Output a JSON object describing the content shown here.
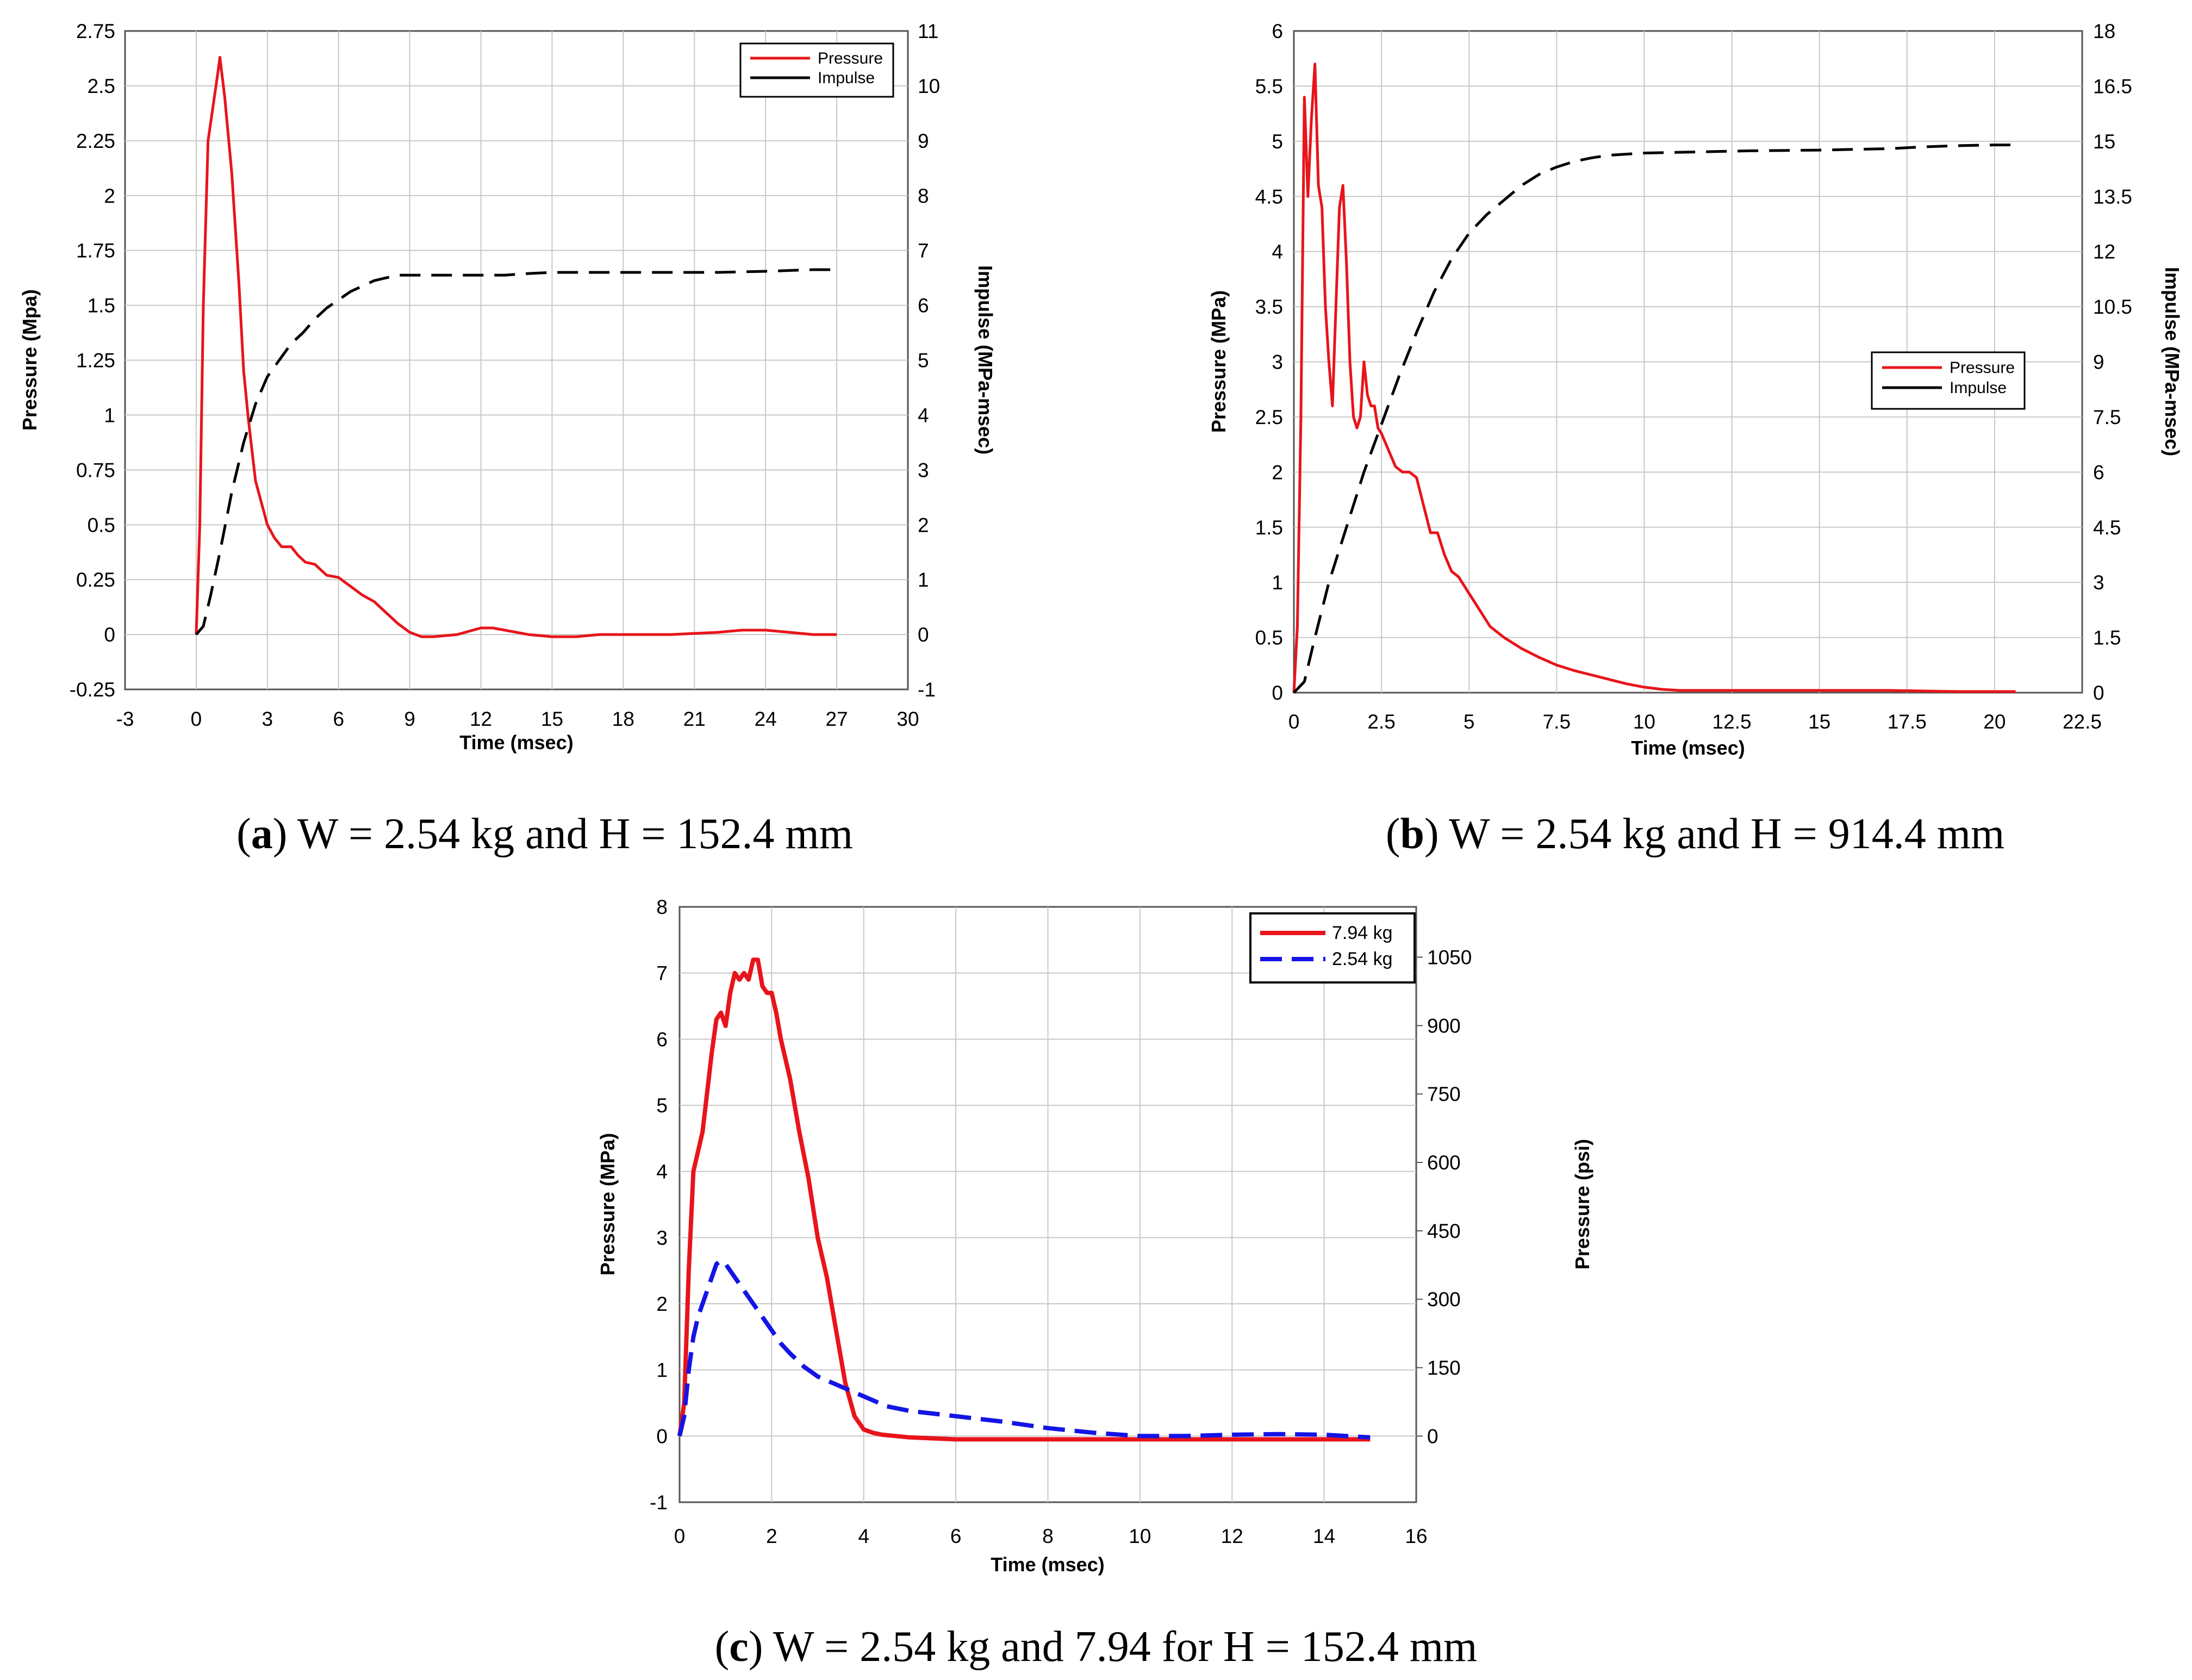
{
  "colors": {
    "pressure": "#e8141b",
    "impulse": "#000000",
    "blue": "#1414e6",
    "grid": "#c8c8c8"
  },
  "chart_data": [
    {
      "type": "line",
      "panel": "a",
      "caption": {
        "letter": "a",
        "text": "W = 2.54 kg and H = 152.4 mm"
      },
      "xlabel": "Time (msec)",
      "ylabel": "Pressure (Mpa)",
      "y2label": "Impulse (MPa-msec)",
      "xlim": [
        -3,
        30
      ],
      "ylim": [
        -0.25,
        2.75
      ],
      "y2lim": [
        -1,
        11
      ],
      "xticks": [
        "-3",
        "0",
        "3",
        "6",
        "9",
        "12",
        "15",
        "18",
        "21",
        "24",
        "27",
        "30"
      ],
      "yticks": [
        "-0.25",
        "0",
        "0.25",
        "0.5",
        "0.75",
        "1",
        "1.25",
        "1.5",
        "1.75",
        "2",
        "2.25",
        "2.5",
        "2.75"
      ],
      "y2ticks": [
        "-1",
        "0",
        "1",
        "2",
        "3",
        "4",
        "5",
        "6",
        "7",
        "8",
        "9",
        "10",
        "11"
      ],
      "legend_position": "top-right",
      "series": [
        {
          "name": "Pressure",
          "axis": "left",
          "style": "solid",
          "color": "#e8141b",
          "x": [
            0,
            0.15,
            0.3,
            0.5,
            0.7,
            0.9,
            1.0,
            1.2,
            1.5,
            1.8,
            2.0,
            2.2,
            2.5,
            2.8,
            3.0,
            3.3,
            3.6,
            4.0,
            4.3,
            4.6,
            5.0,
            5.5,
            6.0,
            6.5,
            7.0,
            7.5,
            8.0,
            8.5,
            9.0,
            9.5,
            10.0,
            11.0,
            12.0,
            12.5,
            13.0,
            14.0,
            15.0,
            16.0,
            17.0,
            18.0,
            20.0,
            22.0,
            23.0,
            24.0,
            25.0,
            26.0,
            27.0
          ],
          "y": [
            0,
            0.5,
            1.5,
            2.25,
            2.4,
            2.55,
            2.63,
            2.45,
            2.1,
            1.6,
            1.2,
            0.98,
            0.7,
            0.58,
            0.5,
            0.44,
            0.4,
            0.4,
            0.36,
            0.33,
            0.32,
            0.27,
            0.26,
            0.22,
            0.18,
            0.15,
            0.1,
            0.05,
            0.01,
            -0.01,
            -0.01,
            0.0,
            0.03,
            0.03,
            0.02,
            0.0,
            -0.01,
            -0.01,
            0.0,
            0.0,
            0.0,
            0.01,
            0.02,
            0.02,
            0.01,
            0.0,
            0.0
          ]
        },
        {
          "name": "Impulse",
          "axis": "right",
          "style": "dashed",
          "color": "#000000",
          "x": [
            0,
            0.3,
            0.6,
            1.0,
            1.5,
            2.0,
            2.5,
            3.0,
            3.5,
            4.0,
            4.5,
            5.0,
            5.5,
            6.0,
            6.5,
            7.0,
            7.5,
            8.0,
            8.5,
            9.0,
            10.0,
            11.0,
            12.0,
            13.0,
            14.0,
            15.0,
            16.0,
            18.0,
            20.0,
            22.0,
            24.0,
            26.0,
            27.0
          ],
          "y": [
            0,
            0.15,
            0.7,
            1.5,
            2.6,
            3.5,
            4.2,
            4.7,
            5.0,
            5.3,
            5.5,
            5.75,
            5.95,
            6.1,
            6.25,
            6.35,
            6.45,
            6.5,
            6.55,
            6.55,
            6.55,
            6.55,
            6.55,
            6.55,
            6.58,
            6.6,
            6.6,
            6.6,
            6.6,
            6.6,
            6.62,
            6.65,
            6.65
          ]
        }
      ]
    },
    {
      "type": "line",
      "panel": "b",
      "caption": {
        "letter": "b",
        "text": "W = 2.54 kg and H = 914.4 mm"
      },
      "xlabel": "Time (msec)",
      "ylabel": "Pressure (MPa)",
      "y2label": "Impulse (MPa-msec)",
      "xlim": [
        0,
        22.5
      ],
      "ylim": [
        0,
        6
      ],
      "y2lim": [
        0,
        18
      ],
      "xticks": [
        "0",
        "2.5",
        "5",
        "7.5",
        "10",
        "12.5",
        "15",
        "17.5",
        "20",
        "22.5"
      ],
      "yticks": [
        "0",
        "0.5",
        "1",
        "1.5",
        "2",
        "2.5",
        "3",
        "3.5",
        "4",
        "4.5",
        "5",
        "5.5",
        "6"
      ],
      "y2ticks": [
        "0",
        "1.5",
        "3",
        "4.5",
        "6",
        "7.5",
        "9",
        "10.5",
        "12",
        "13.5",
        "15",
        "16.5",
        "18"
      ],
      "legend_position": "center-right",
      "series": [
        {
          "name": "Pressure",
          "axis": "left",
          "style": "solid",
          "color": "#e8141b",
          "x": [
            0,
            0.1,
            0.2,
            0.3,
            0.4,
            0.5,
            0.6,
            0.7,
            0.8,
            0.9,
            1.0,
            1.1,
            1.2,
            1.3,
            1.4,
            1.5,
            1.6,
            1.7,
            1.8,
            1.9,
            2.0,
            2.1,
            2.2,
            2.3,
            2.4,
            2.5,
            2.7,
            2.9,
            3.1,
            3.3,
            3.5,
            3.7,
            3.9,
            4.1,
            4.3,
            4.5,
            4.7,
            5.0,
            5.3,
            5.6,
            6.0,
            6.5,
            7.0,
            7.5,
            8.0,
            8.5,
            9.0,
            9.5,
            10.0,
            10.5,
            11.0,
            12.0,
            13.0,
            15.0,
            17.0,
            19.0,
            20.6
          ],
          "y": [
            0,
            0.6,
            2.5,
            5.4,
            4.5,
            5.2,
            5.7,
            4.6,
            4.4,
            3.5,
            3.0,
            2.6,
            3.5,
            4.4,
            4.6,
            3.9,
            3.0,
            2.5,
            2.4,
            2.5,
            3.0,
            2.7,
            2.6,
            2.6,
            2.4,
            2.35,
            2.2,
            2.05,
            2.0,
            2.0,
            1.95,
            1.7,
            1.45,
            1.45,
            1.25,
            1.1,
            1.05,
            0.9,
            0.75,
            0.6,
            0.5,
            0.4,
            0.32,
            0.25,
            0.2,
            0.16,
            0.12,
            0.08,
            0.05,
            0.03,
            0.02,
            0.02,
            0.02,
            0.02,
            0.02,
            0.01,
            0.01
          ]
        },
        {
          "name": "Impulse",
          "axis": "right",
          "style": "dashed",
          "color": "#000000",
          "x": [
            0,
            0.3,
            0.6,
            1.0,
            1.5,
            2.0,
            2.5,
            3.0,
            3.5,
            4.0,
            4.5,
            5.0,
            5.5,
            6.0,
            6.5,
            7.0,
            7.5,
            8.0,
            8.5,
            9.0,
            9.5,
            10.0,
            11.0,
            12.0,
            13.0,
            14.0,
            15.0,
            16.0,
            17.0,
            18.0,
            19.0,
            20.0,
            20.6
          ],
          "y": [
            0,
            0.3,
            1.5,
            3.0,
            4.5,
            6.0,
            7.3,
            8.6,
            9.8,
            10.9,
            11.8,
            12.5,
            13.0,
            13.4,
            13.8,
            14.1,
            14.3,
            14.45,
            14.55,
            14.62,
            14.65,
            14.68,
            14.7,
            14.72,
            14.74,
            14.75,
            14.76,
            14.78,
            14.8,
            14.85,
            14.88,
            14.9,
            14.9
          ]
        }
      ]
    },
    {
      "type": "line",
      "panel": "c",
      "caption": {
        "letter": "c",
        "text": "W = 2.54 kg and 7.94 for H = 152.4 mm"
      },
      "xlabel": "Time (msec)",
      "ylabel": "Pressure (MPa)",
      "y2label": "Pressure (psi)",
      "xlim": [
        0,
        16
      ],
      "ylim": [
        -1,
        8
      ],
      "y2ticks_values": [
        0,
        150,
        300,
        450,
        600,
        750,
        900,
        1050
      ],
      "xticks": [
        "0",
        "2",
        "4",
        "6",
        "8",
        "10",
        "12",
        "14",
        "16"
      ],
      "yticks": [
        "-1",
        "0",
        "1",
        "2",
        "3",
        "4",
        "5",
        "6",
        "7",
        "8"
      ],
      "y2ticks": [
        "0",
        "150",
        "300",
        "450",
        "600",
        "750",
        "900",
        "1050"
      ],
      "legend_position": "top-right",
      "series": [
        {
          "name": "7.94 kg",
          "axis": "left",
          "style": "solid",
          "color": "#e8141b",
          "x": [
            0,
            0.1,
            0.2,
            0.3,
            0.4,
            0.5,
            0.6,
            0.7,
            0.8,
            0.9,
            1.0,
            1.1,
            1.2,
            1.3,
            1.4,
            1.5,
            1.6,
            1.7,
            1.8,
            1.9,
            2.0,
            2.1,
            2.2,
            2.4,
            2.6,
            2.8,
            3.0,
            3.2,
            3.4,
            3.6,
            3.8,
            4.0,
            4.2,
            4.4,
            4.7,
            5.0,
            6.0,
            8.0,
            10.0,
            12.0,
            14.0,
            15.0
          ],
          "y": [
            0,
            0.5,
            2.5,
            4.0,
            4.3,
            4.6,
            5.2,
            5.8,
            6.3,
            6.4,
            6.2,
            6.7,
            7.0,
            6.9,
            7.0,
            6.9,
            7.2,
            7.2,
            6.8,
            6.7,
            6.7,
            6.4,
            6.0,
            5.4,
            4.6,
            3.9,
            3.0,
            2.4,
            1.6,
            0.8,
            0.3,
            0.1,
            0.05,
            0.02,
            0.0,
            -0.02,
            -0.05,
            -0.05,
            -0.05,
            -0.05,
            -0.05,
            -0.05
          ]
        },
        {
          "name": "2.54 kg",
          "axis": "left",
          "style": "dashed",
          "color": "#1414e6",
          "x": [
            0,
            0.1,
            0.2,
            0.3,
            0.4,
            0.5,
            0.6,
            0.7,
            0.8,
            0.9,
            1.0,
            1.1,
            1.2,
            1.4,
            1.6,
            1.8,
            2.0,
            2.2,
            2.4,
            2.7,
            3.0,
            3.5,
            4.0,
            4.5,
            5.0,
            6.0,
            7.0,
            8.0,
            9.0,
            10.0,
            11.0,
            12.0,
            13.0,
            14.0,
            15.0
          ],
          "y": [
            0,
            0.3,
            1.0,
            1.5,
            1.8,
            2.0,
            2.2,
            2.4,
            2.6,
            2.65,
            2.6,
            2.5,
            2.4,
            2.2,
            2.0,
            1.8,
            1.6,
            1.4,
            1.25,
            1.05,
            0.9,
            0.75,
            0.6,
            0.45,
            0.38,
            0.3,
            0.22,
            0.12,
            0.05,
            0.0,
            0.0,
            0.02,
            0.03,
            0.02,
            -0.02
          ]
        }
      ]
    }
  ]
}
